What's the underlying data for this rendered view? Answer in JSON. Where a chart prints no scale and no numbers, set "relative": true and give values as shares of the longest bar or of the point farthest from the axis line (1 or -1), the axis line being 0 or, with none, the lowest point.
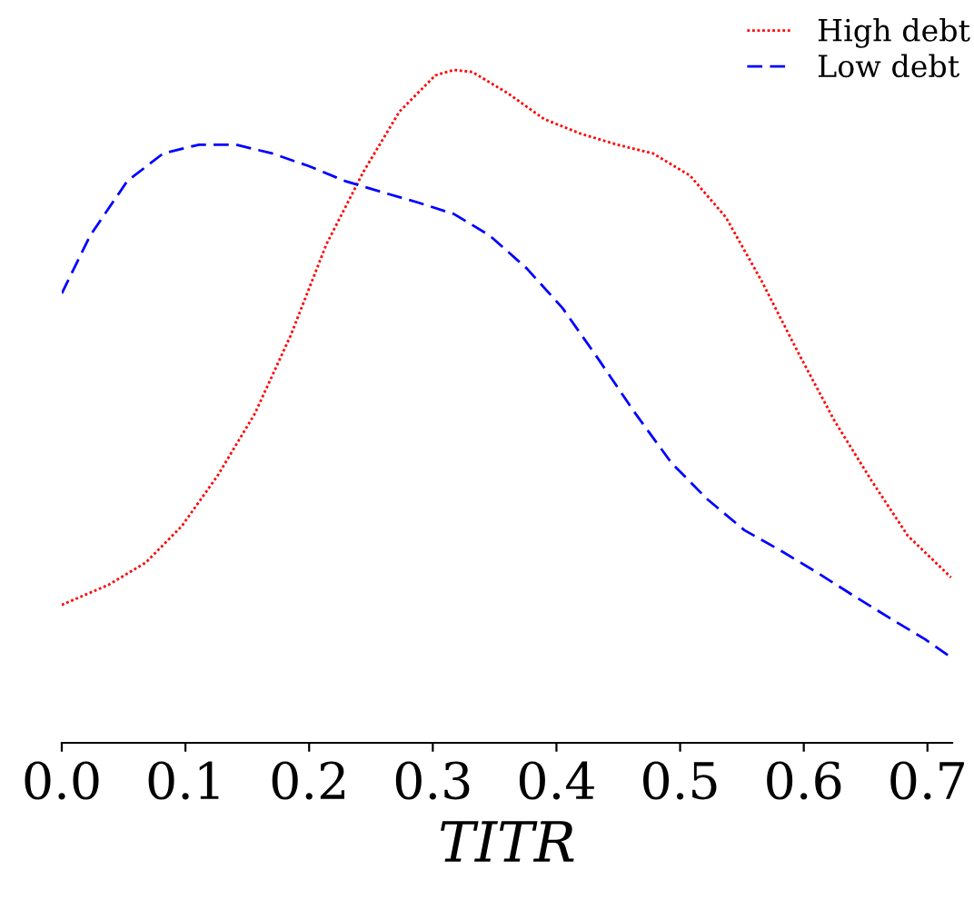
{
  "chart_data": {
    "type": "line",
    "xlabel": "TITR",
    "relative": true,
    "xlim": [
      0,
      0.72
    ],
    "xticks": [
      {
        "value": 0,
        "label": "0.0"
      },
      0.1,
      0.2,
      0.3,
      0.4,
      0.5,
      0.6,
      0.7
    ],
    "grid": false,
    "legend": "top right",
    "tick_labels": "x",
    "marker": "none",
    "series": [
      {
        "name": "High debt",
        "color": "#ff0000",
        "line_style": "dotted",
        "x": [
          0.0,
          0.038,
          0.068,
          0.097,
          0.126,
          0.156,
          0.185,
          0.214,
          0.244,
          0.273,
          0.302,
          0.317,
          0.332,
          0.361,
          0.39,
          0.42,
          0.449,
          0.478,
          0.508,
          0.537,
          0.566,
          0.596,
          0.625,
          0.655,
          0.684,
          0.719
        ],
        "values": [
          0.205,
          0.235,
          0.268,
          0.322,
          0.397,
          0.489,
          0.605,
          0.741,
          0.849,
          0.938,
          0.992,
          1.0,
          0.997,
          0.965,
          0.927,
          0.905,
          0.889,
          0.876,
          0.843,
          0.781,
          0.686,
          0.578,
          0.478,
          0.389,
          0.308,
          0.246
        ]
      },
      {
        "name": "Low debt",
        "color": "#0000ff",
        "line_style": "dashed",
        "x": [
          0.0,
          0.023,
          0.053,
          0.082,
          0.111,
          0.141,
          0.17,
          0.2,
          0.229,
          0.258,
          0.288,
          0.317,
          0.346,
          0.376,
          0.405,
          0.434,
          0.464,
          0.493,
          0.522,
          0.552,
          0.581,
          0.61,
          0.64,
          0.669,
          0.698,
          0.719
        ],
        "values": [
          0.668,
          0.754,
          0.835,
          0.876,
          0.889,
          0.889,
          0.876,
          0.857,
          0.835,
          0.819,
          0.803,
          0.786,
          0.754,
          0.705,
          0.646,
          0.57,
          0.489,
          0.416,
          0.362,
          0.316,
          0.286,
          0.254,
          0.219,
          0.186,
          0.154,
          0.127
        ]
      }
    ]
  }
}
